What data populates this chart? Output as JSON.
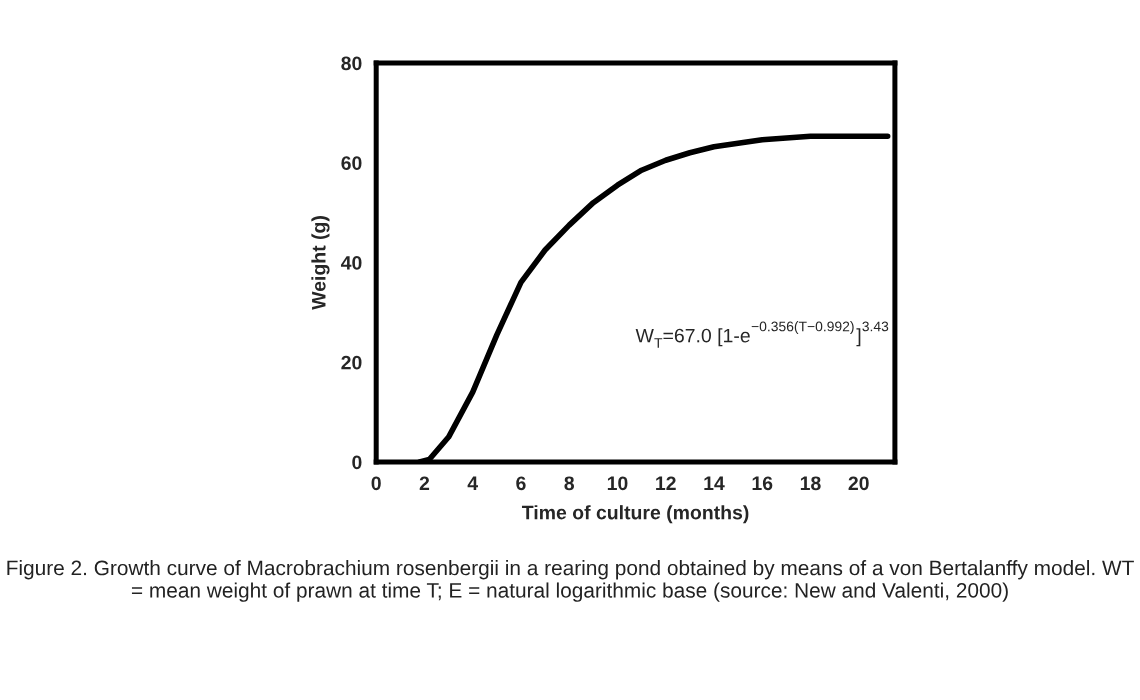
{
  "chart_data": {
    "type": "line",
    "xlabel": "Time of culture (months)",
    "ylabel": "Weight (g)",
    "x": [
      1.8,
      2.2,
      3,
      4,
      5,
      6,
      7,
      8,
      9,
      10,
      11,
      12,
      13,
      14,
      16,
      18,
      21.2
    ],
    "series": [
      {
        "color": "#000000",
        "values": [
          0,
          0.5,
          5,
          14,
          25.5,
          36,
          42.5,
          47.5,
          52,
          55.5,
          58.5,
          60.5,
          62,
          63.2,
          64.6,
          65.3,
          65.3
        ]
      }
    ],
    "xlim": [
      0,
      21.5
    ],
    "ylim": [
      0,
      80
    ],
    "xticks": [
      0,
      2,
      4,
      6,
      8,
      10,
      12,
      14,
      16,
      18,
      20
    ],
    "yticks": [
      0,
      20,
      40,
      60,
      80
    ],
    "grid": false,
    "legend": false,
    "marker": "none",
    "line_style": "solid",
    "annotations": [
      "W$_{T}$=67.0 [1-e$^{−0.356(T−0.992)}$]$^{3.43}$",
      "Figure 2. Growth curve of Macrobrachium rosenbergii in a rearing pond obtained by means of a von Bertalanffy model. WT = mean weight of prawn at time T; E = natural logarithmic base (source: New and Valenti, 2000)"
    ]
  }
}
